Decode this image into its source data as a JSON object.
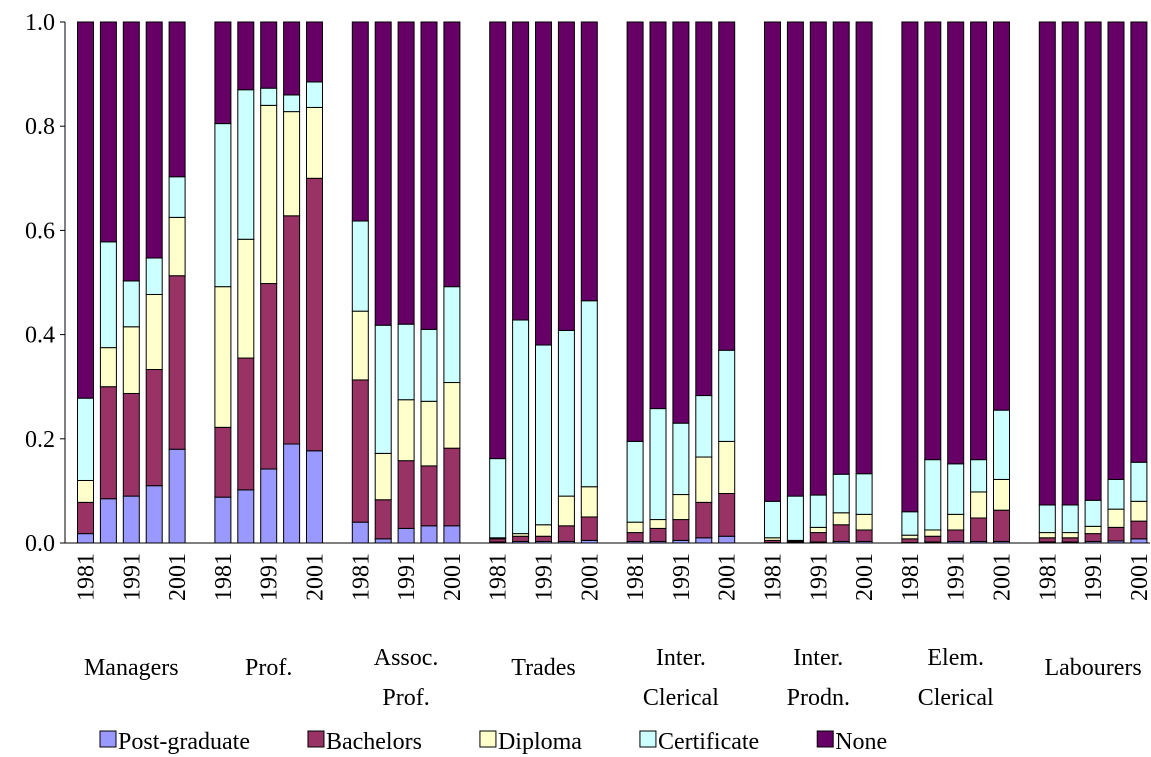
{
  "chart_data": {
    "type": "stacked_bar",
    "categories": [
      "1981",
      null,
      "1991",
      null,
      "2001",
      "1981",
      null,
      "1991",
      null,
      "2001",
      "1981",
      null,
      "1991",
      null,
      "2001",
      "1981",
      null,
      "1991",
      null,
      "2001",
      "1981",
      null,
      "1991",
      null,
      "2001",
      "1981",
      null,
      "1991",
      null,
      "2001",
      "1981",
      null,
      "1991",
      null,
      "2001",
      "1981",
      null,
      "1991",
      null,
      "2001"
    ],
    "groups": [
      [
        "Managers"
      ],
      [
        "Prof."
      ],
      [
        "Assoc.",
        "Prof."
      ],
      [
        "Trades"
      ],
      [
        "Inter.",
        "Clerical"
      ],
      [
        "Inter.",
        "Prodn."
      ],
      [
        "Elem.",
        "Clerical"
      ],
      [
        "Labourers"
      ]
    ],
    "series": [
      {
        "name": "Post-graduate",
        "color": "#9999ff",
        "values": [
          0.018,
          0.085,
          0.09,
          0.11,
          0.18,
          0.088,
          0.102,
          0.142,
          0.19,
          0.177,
          0.04,
          0.008,
          0.028,
          0.033,
          0.033,
          0.002,
          0.003,
          0.003,
          0.003,
          0.005,
          0.003,
          0.003,
          0.005,
          0.01,
          0.013,
          0.001,
          0.001,
          0.002,
          0.003,
          0.003,
          0.001,
          0.002,
          0.003,
          0.003,
          0.003,
          0.002,
          0.002,
          0.003,
          0.004,
          0.008
        ]
      },
      {
        "name": "Bachelors",
        "color": "#993366",
        "values": [
          0.06,
          0.215,
          0.197,
          0.223,
          0.333,
          0.134,
          0.253,
          0.356,
          0.438,
          0.523,
          0.273,
          0.075,
          0.13,
          0.115,
          0.149,
          0.006,
          0.01,
          0.01,
          0.03,
          0.045,
          0.017,
          0.025,
          0.04,
          0.068,
          0.082,
          0.004,
          0.002,
          0.018,
          0.032,
          0.022,
          0.007,
          0.011,
          0.022,
          0.045,
          0.06,
          0.008,
          0.008,
          0.015,
          0.026,
          0.034
        ]
      },
      {
        "name": "Diploma",
        "color": "#ffffcc",
        "values": [
          0.042,
          0.075,
          0.128,
          0.144,
          0.112,
          0.27,
          0.228,
          0.342,
          0.2,
          0.136,
          0.132,
          0.089,
          0.117,
          0.124,
          0.126,
          0.002,
          0.005,
          0.022,
          0.057,
          0.058,
          0.02,
          0.017,
          0.048,
          0.087,
          0.1,
          0.005,
          0.002,
          0.01,
          0.023,
          0.03,
          0.007,
          0.012,
          0.03,
          0.05,
          0.059,
          0.01,
          0.01,
          0.014,
          0.035,
          0.038
        ]
      },
      {
        "name": "Certificate",
        "color": "#ccffff",
        "values": [
          0.158,
          0.203,
          0.088,
          0.07,
          0.078,
          0.313,
          0.287,
          0.033,
          0.032,
          0.049,
          0.173,
          0.246,
          0.145,
          0.138,
          0.184,
          0.152,
          0.41,
          0.345,
          0.318,
          0.357,
          0.155,
          0.213,
          0.137,
          0.118,
          0.175,
          0.07,
          0.085,
          0.062,
          0.074,
          0.078,
          0.045,
          0.135,
          0.097,
          0.062,
          0.133,
          0.053,
          0.053,
          0.05,
          0.057,
          0.075
        ]
      },
      {
        "name": "None",
        "color": "#660066",
        "values": [
          0.722,
          0.422,
          0.497,
          0.453,
          0.297,
          0.195,
          0.13,
          0.127,
          0.14,
          0.115,
          0.382,
          0.582,
          0.58,
          0.59,
          0.508,
          0.838,
          0.572,
          0.62,
          0.592,
          0.535,
          0.805,
          0.742,
          0.77,
          0.717,
          0.63,
          0.92,
          0.91,
          0.908,
          0.868,
          0.867,
          0.94,
          0.84,
          0.848,
          0.84,
          0.745,
          0.927,
          0.927,
          0.918,
          0.878,
          0.845
        ]
      }
    ],
    "ylim": [
      0,
      1
    ],
    "yticks": [
      {
        "value": 0,
        "label": "0.0"
      },
      0.2,
      0.4,
      0.6,
      0.8,
      {
        "value": 1,
        "label": "1.0"
      }
    ],
    "legend": "bottom"
  }
}
